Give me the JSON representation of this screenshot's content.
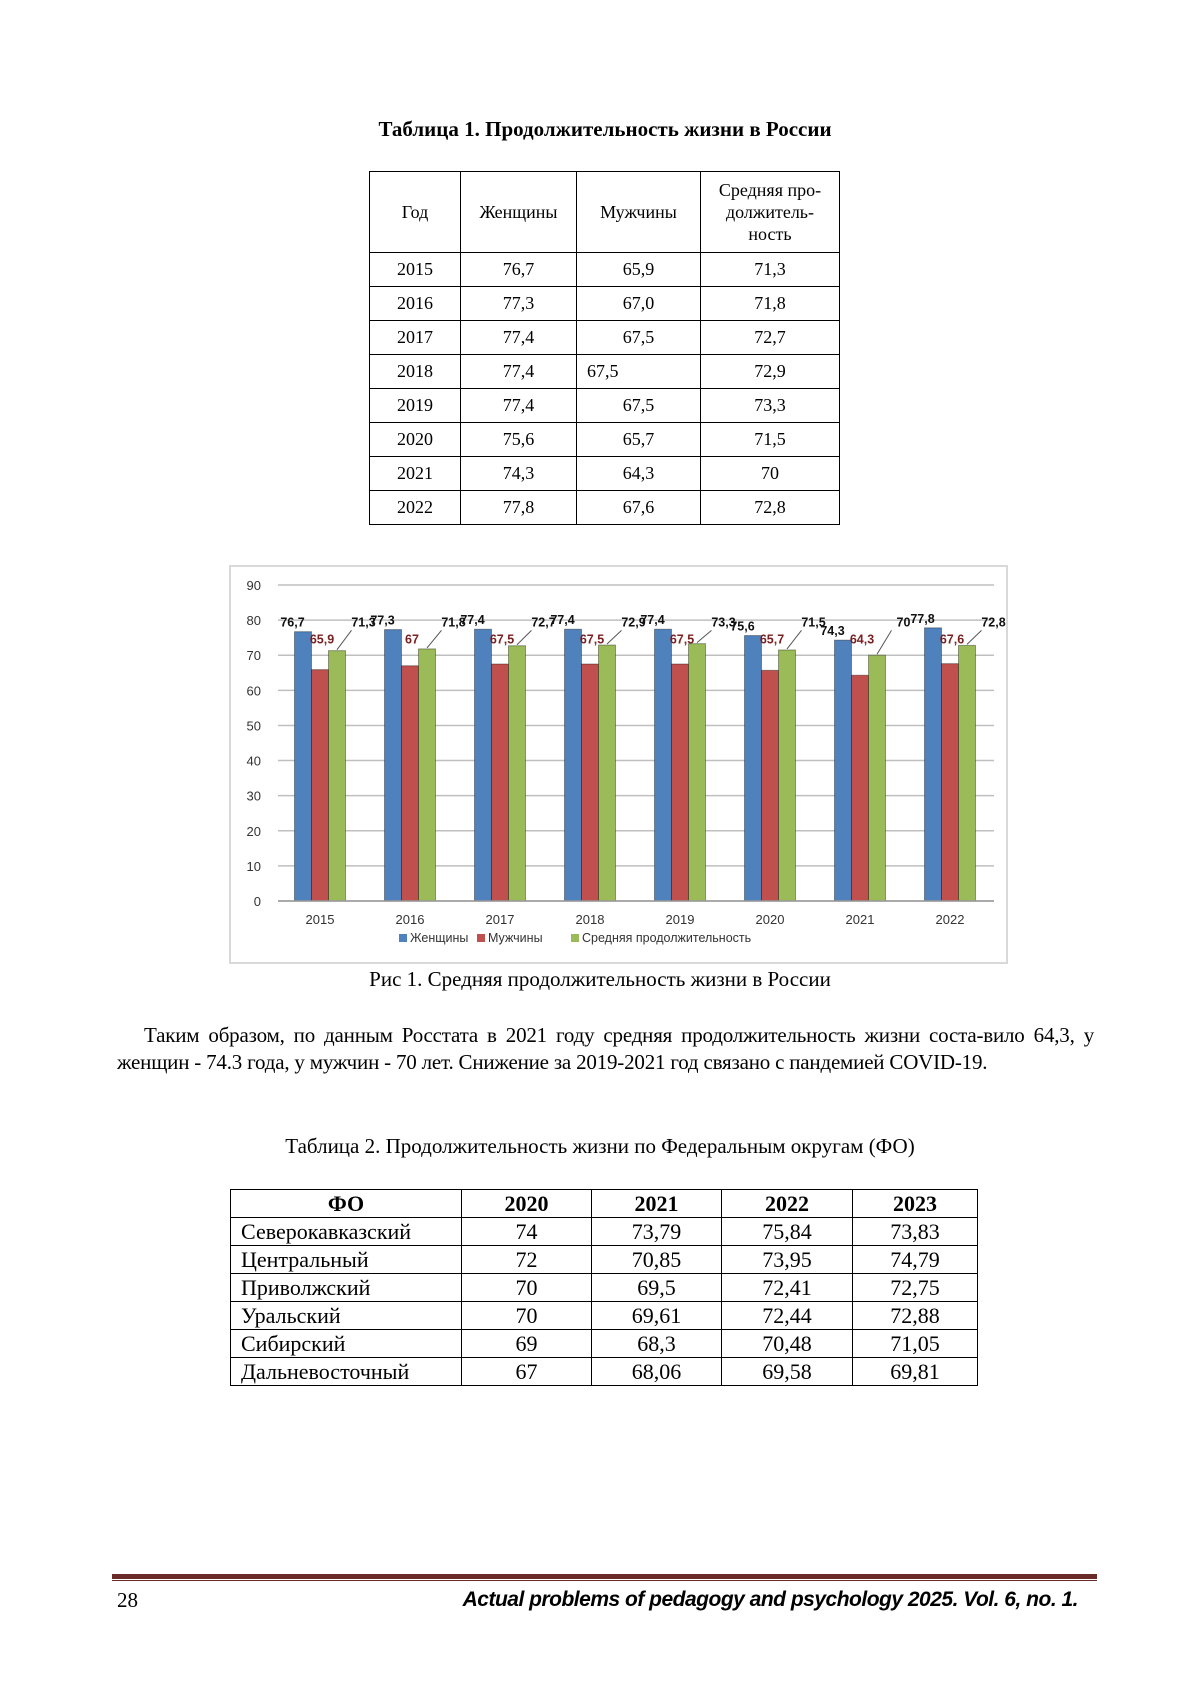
{
  "table1": {
    "title": "Таблица 1. Продолжительность жизни в России",
    "headers": [
      "Год",
      "Женщины",
      "Мужчины",
      "Средняя про-\nдолжитель-\nность"
    ],
    "rows": [
      [
        "2015",
        "76,7",
        "65,9",
        "71,3"
      ],
      [
        "2016",
        "77,3",
        "67,0",
        "71,8"
      ],
      [
        "2017",
        "77,4",
        "67,5",
        "72,7"
      ],
      [
        "2018",
        "77,4",
        "67,5",
        "72,9"
      ],
      [
        "2019",
        "77,4",
        "67,5",
        "73,3"
      ],
      [
        "2020",
        "75,6",
        "65,7",
        "71,5"
      ],
      [
        "2021",
        "74,3",
        "64,3",
        "70"
      ],
      [
        "2022",
        "77,8",
        "67,6",
        "72,8"
      ]
    ]
  },
  "chart_data": {
    "type": "bar",
    "title": "",
    "categories": [
      "2015",
      "2016",
      "2017",
      "2018",
      "2019",
      "2020",
      "2021",
      "2022"
    ],
    "series": [
      {
        "name": "Женщины",
        "color": "#4f81bd",
        "values": [
          76.7,
          77.3,
          77.4,
          77.4,
          77.4,
          75.6,
          74.3,
          77.8
        ],
        "labels": [
          "76,7",
          "77,3",
          "77,4",
          "77,4",
          "77,4",
          "75,6",
          "74,3",
          "77,8"
        ]
      },
      {
        "name": "Мужчины",
        "color": "#c0504d",
        "values": [
          65.9,
          67,
          67.5,
          67.5,
          67.5,
          65.7,
          64.3,
          67.6
        ],
        "labels": [
          "65,9",
          "67",
          "67,5",
          "67,5",
          "67,5",
          "65,7",
          "64,3",
          "67,6"
        ]
      },
      {
        "name": "Средняя продолжительность",
        "color": "#9bbb59",
        "values": [
          71.3,
          71.8,
          72.7,
          72.9,
          73.3,
          71.5,
          70,
          72.8
        ],
        "labels": [
          "71,3",
          "71,8",
          "72,7",
          "72,9",
          "73,3",
          "71,5",
          "70",
          "72,8"
        ]
      }
    ],
    "yticks": [
      "0",
      "10",
      "20",
      "30",
      "40",
      "50",
      "60",
      "70",
      "80",
      "90"
    ],
    "ylim": [
      0,
      90
    ],
    "grid": true,
    "legend": "bottom",
    "xlabel": "",
    "ylabel": ""
  },
  "figure_caption": "Рис 1. Средняя продолжительность жизни в России",
  "paragraph": "Таким образом, по данным Росстата в 2021 году средняя продолжительность жизни соста-вило 64,3, у женщин - 74.3 года, у мужчин - 70 лет. Снижение за 2019-2021 год связано с пандемией COVID-19.",
  "table2": {
    "title": "Таблица 2. Продолжительность жизни по Федеральным округам (ФО)",
    "headers": [
      "ФО",
      "2020",
      "2021",
      "2022",
      "2023"
    ],
    "rows": [
      [
        "Северокавказский",
        "74",
        "73,79",
        "75,84",
        "73,83"
      ],
      [
        "Центральный",
        "72",
        "70,85",
        "73,95",
        "74,79"
      ],
      [
        "Приволжский",
        "70",
        "69,5",
        "72,41",
        "72,75"
      ],
      [
        "Уральский",
        "70",
        "69,61",
        "72,44",
        "72,88"
      ],
      [
        "Сибирский",
        "69",
        "68,3",
        "70,48",
        "71,05"
      ],
      [
        "Дальневосточный",
        "67",
        "68,06",
        "69,58",
        "69,81"
      ]
    ]
  },
  "footer": {
    "page_number": "28",
    "journal": "Actual problems of pedagogy and psychology 2025. Vol. 6, no. 1."
  }
}
